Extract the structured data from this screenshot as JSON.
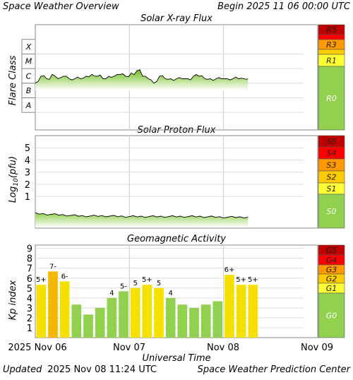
{
  "header": {
    "title": "Space Weather Overview",
    "begin": "Begin 2025 11 06 00:00 UTC"
  },
  "footer": {
    "updated_label": "Updated",
    "updated_time": "2025 Nov 08 11:24 UTC",
    "credit": "Space Weather Prediction Center"
  },
  "x_axis": {
    "label": "Universal Time",
    "ticks": [
      "2025 Nov 06",
      "Nov 07",
      "Nov 08",
      "Nov 09"
    ],
    "range_days": [
      0,
      3
    ]
  },
  "colors": {
    "R5": "#c00000",
    "R4": "#ff0000",
    "R3": "#ff9900",
    "R2": "#ffcc00",
    "R1": "#ffff33",
    "R0": "#92d050",
    "green": "#92d050",
    "yellow": "#f5e000",
    "orange": "#f5b800"
  },
  "chart_data": [
    {
      "type": "area",
      "title": "Solar X-ray Flux",
      "ylabel": "Flare Class",
      "y_ticks": [
        "X",
        "M",
        "C",
        "B",
        "A"
      ],
      "data_end_day": 2.26,
      "series": [
        {
          "x": [
            0.0,
            0.06,
            0.12,
            0.18,
            0.24,
            0.3,
            0.36,
            0.42,
            0.48,
            0.54,
            0.6,
            0.66,
            0.72,
            0.78,
            0.84,
            0.9,
            0.96,
            1.02,
            1.08,
            1.14,
            1.2,
            1.26,
            1.32,
            1.38,
            1.44,
            1.5,
            1.56,
            1.62,
            1.68,
            1.74,
            1.8,
            1.86,
            1.92,
            1.98,
            2.04,
            2.1,
            2.16,
            2.22,
            2.26
          ],
          "values": [
            "C1",
            "C3",
            "C2",
            "C4",
            "C2",
            "C3",
            "C2",
            "C2",
            "C2",
            "C3",
            "C4",
            "C3",
            "C2",
            "C3",
            "C3",
            "C4",
            "C3",
            "C5",
            "C7",
            "C3",
            "C2",
            "C1",
            "C3",
            "C2",
            "C2",
            "C2",
            "C2",
            "C2",
            "C3",
            "C3",
            "C2",
            "C2",
            "C2",
            "C2",
            "C2",
            "C2",
            "C2",
            "C2",
            "C2"
          ]
        }
      ],
      "scale_labels": [
        "R5",
        "R3",
        "R1",
        "R0"
      ]
    },
    {
      "type": "area",
      "title": "Solar Proton Flux",
      "ylabel": "Log10(pfu)",
      "y_ticks": [
        "5",
        "4",
        "3",
        "2",
        "1"
      ],
      "ylim": [
        -1.6,
        6
      ],
      "data_end_day": 2.26,
      "series": [
        {
          "x": [
            0.0,
            0.25,
            0.5,
            0.75,
            1.0,
            1.25,
            1.5,
            1.75,
            2.0,
            2.26
          ],
          "values": [
            -0.4,
            -0.5,
            -0.6,
            -0.6,
            -0.65,
            -0.65,
            -0.65,
            -0.65,
            -0.7,
            -0.7
          ]
        }
      ],
      "scale_labels": [
        "S5",
        "S4",
        "S3",
        "S2",
        "S1",
        "S0"
      ]
    },
    {
      "type": "bar",
      "title": "Geomagnetic Activity",
      "ylabel": "Kp index",
      "y_ticks": [
        "9",
        "8",
        "7",
        "6",
        "5",
        "4",
        "3",
        "2",
        "1"
      ],
      "ylim": [
        0,
        9.33
      ],
      "categories": [
        "00",
        "03",
        "06",
        "09",
        "12",
        "15",
        "18",
        "21",
        "00",
        "03",
        "06",
        "09",
        "12",
        "15",
        "18",
        "21",
        "00",
        "03",
        "06"
      ],
      "values": [
        5.33,
        6.67,
        5.67,
        3.33,
        2.33,
        3.0,
        4.0,
        4.67,
        5.0,
        5.33,
        5.0,
        4.0,
        3.33,
        3.0,
        3.33,
        3.67,
        6.33,
        5.33,
        5.33
      ],
      "bar_labels": [
        "5+",
        "7-",
        "6-",
        "",
        "",
        "",
        "4",
        "5-",
        "5",
        "5+",
        "5",
        "4",
        "",
        "",
        "",
        "",
        "6+",
        "5+",
        "5+"
      ],
      "scale_labels": [
        "G5",
        "G4",
        "G3",
        "G2",
        "G1",
        "G0"
      ]
    }
  ]
}
